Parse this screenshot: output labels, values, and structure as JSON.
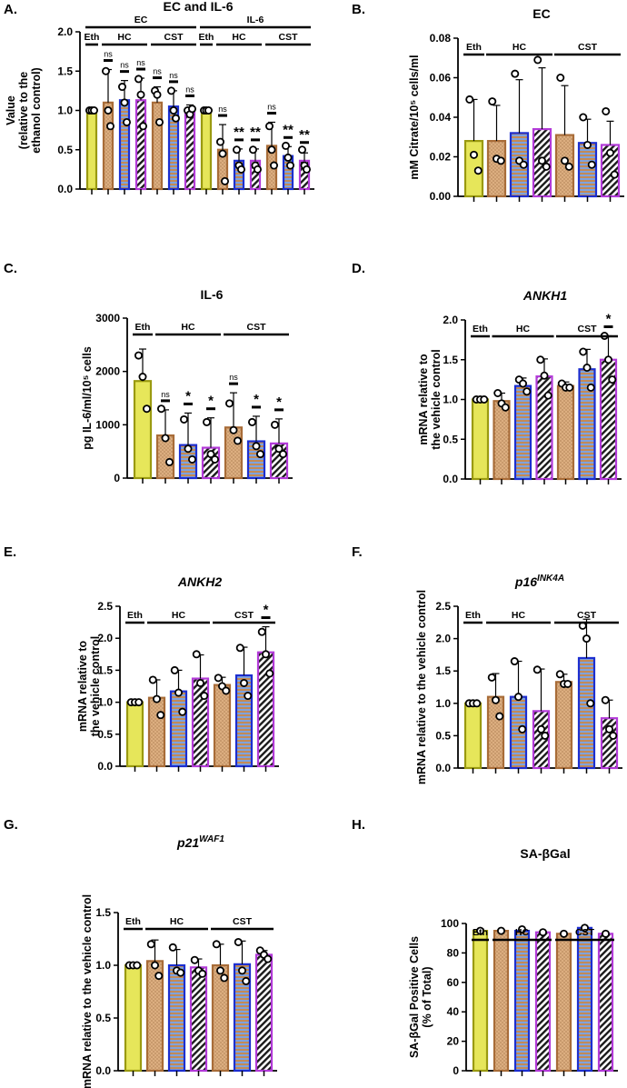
{
  "figure": {
    "legend_note": "Bar styles: Eth = yellow solid; HC/CST conditions = tan dotted, blue/tan striped, purple/black hatched"
  },
  "colors": {
    "eth": "#e6e65a",
    "eth_edge": "#9a9a10",
    "dot": "#dcae80",
    "dot_edge": "#a86c38",
    "blue_edge": "#1c2ed0",
    "purple_edge": "#b23ad8"
  },
  "chart_data": [
    {
      "id": "A",
      "letter": "A.",
      "type": "bar",
      "title": "EC and IL-6",
      "ylabel": "Value",
      "ylabel2": "(relative to the",
      "ylabel3": "ethanol control)",
      "ylim": [
        0,
        2.0
      ],
      "yticks": [
        "0.0",
        "0.5",
        "1.0",
        "1.5",
        "2.0"
      ],
      "categories": [
        "Eth",
        "HC-1",
        "HC-2",
        "HC-3",
        "CST-1",
        "CST-2",
        "CST-3",
        "Eth",
        "HC-1",
        "HC-2",
        "HC-3",
        "CST-1",
        "CST-2",
        "CST-3"
      ],
      "styles": [
        "eth",
        "dot",
        "blue",
        "purple",
        "dot",
        "blue",
        "purple",
        "eth",
        "dot",
        "blue",
        "purple",
        "dot",
        "blue",
        "purple"
      ],
      "values": [
        1.0,
        1.1,
        1.13,
        1.13,
        1.1,
        1.05,
        0.99,
        1.0,
        0.5,
        0.36,
        0.36,
        0.55,
        0.42,
        0.36
      ],
      "errors": [
        0.02,
        0.42,
        0.25,
        0.28,
        0.2,
        0.2,
        0.08,
        0.02,
        0.32,
        0.15,
        0.15,
        0.3,
        0.12,
        0.1
      ],
      "points": [
        [
          1,
          1,
          1
        ],
        [
          1.5,
          1.0,
          0.8
        ],
        [
          1.3,
          1.1,
          0.85
        ],
        [
          1.4,
          1.2,
          0.8
        ],
        [
          1.25,
          1.2,
          0.85
        ],
        [
          1.25,
          1.0,
          0.9
        ],
        [
          1.0,
          0.95,
          1.02
        ],
        [
          1,
          1,
          1
        ],
        [
          0.6,
          0.45,
          0.1
        ],
        [
          0.5,
          0.3,
          0.25
        ],
        [
          0.5,
          0.3,
          0.25
        ],
        [
          0.8,
          0.5,
          0.3
        ],
        [
          0.55,
          0.4,
          0.3
        ],
        [
          0.5,
          0.3,
          0.25
        ]
      ],
      "significance": [
        "",
        "ns",
        "ns",
        "ns",
        "ns",
        "ns",
        "ns",
        "",
        "ns",
        "**",
        "**",
        "ns",
        "**",
        "**"
      ],
      "group_labels": [
        {
          "text": "EC",
          "from": 0,
          "to": 6,
          "level": "outer"
        },
        {
          "text": "IL-6",
          "from": 7,
          "to": 13,
          "level": "outer"
        },
        {
          "text": "Eth",
          "from": 0,
          "to": 0,
          "level": "inner"
        },
        {
          "text": "HC",
          "from": 1,
          "to": 3,
          "level": "inner"
        },
        {
          "text": "CST",
          "from": 4,
          "to": 6,
          "level": "inner"
        },
        {
          "text": "Eth",
          "from": 7,
          "to": 7,
          "level": "inner"
        },
        {
          "text": "HC",
          "from": 8,
          "to": 10,
          "level": "inner"
        },
        {
          "text": "CST",
          "from": 11,
          "to": 13,
          "level": "inner"
        }
      ]
    },
    {
      "id": "B",
      "letter": "B.",
      "type": "bar",
      "title": "EC",
      "ylabel": "mM Citrate/10⁵ cells/ml",
      "ylim": [
        0,
        0.08
      ],
      "yticks": [
        "0.00",
        "0.02",
        "0.04",
        "0.06",
        "0.08"
      ],
      "categories": [
        "Eth",
        "HC-1",
        "HC-2",
        "HC-3",
        "CST-1",
        "CST-2",
        "CST-3"
      ],
      "styles": [
        "eth",
        "dot",
        "blue",
        "purple",
        "dot",
        "blue",
        "purple"
      ],
      "values": [
        0.028,
        0.028,
        0.032,
        0.034,
        0.031,
        0.027,
        0.026
      ],
      "errors": [
        0.021,
        0.018,
        0.027,
        0.031,
        0.025,
        0.012,
        0.012
      ],
      "points": [
        [
          0.049,
          0.021,
          0.013
        ],
        [
          0.048,
          0.019,
          0.018
        ],
        [
          0.062,
          0.018,
          0.016
        ],
        [
          0.069,
          0.018,
          0.015
        ],
        [
          0.06,
          0.018,
          0.015
        ],
        [
          0.04,
          0.026,
          0.016
        ],
        [
          0.043,
          0.022,
          0.011
        ]
      ],
      "significance": [
        "",
        "",
        "",
        "",
        "",
        "",
        ""
      ],
      "group_labels": [
        {
          "text": "Eth",
          "from": 0,
          "to": 0,
          "level": "inner"
        },
        {
          "text": "HC",
          "from": 1,
          "to": 3,
          "level": "inner"
        },
        {
          "text": "CST",
          "from": 4,
          "to": 6,
          "level": "inner"
        }
      ]
    },
    {
      "id": "C",
      "letter": "C.",
      "type": "bar",
      "title": "IL-6",
      "ylabel": "pg IL-6/ml/10⁵ cells",
      "ylim": [
        0,
        3000
      ],
      "yticks": [
        "0",
        "1000",
        "2000",
        "3000"
      ],
      "categories": [
        "Eth",
        "HC-1",
        "HC-2",
        "HC-3",
        "CST-1",
        "CST-2",
        "CST-3"
      ],
      "styles": [
        "eth",
        "dot",
        "blue",
        "purple",
        "dot",
        "blue",
        "purple"
      ],
      "values": [
        1820,
        800,
        620,
        570,
        950,
        690,
        650
      ],
      "errors": [
        600,
        480,
        600,
        560,
        650,
        470,
        460
      ],
      "points": [
        [
          2300,
          1900,
          1300
        ],
        [
          1300,
          750,
          300
        ],
        [
          1100,
          550,
          350
        ],
        [
          1050,
          450,
          350
        ],
        [
          1400,
          900,
          700
        ],
        [
          1050,
          600,
          450
        ],
        [
          1000,
          550,
          450
        ]
      ],
      "significance": [
        "",
        "ns",
        "*",
        "*",
        "ns",
        "*",
        "*"
      ],
      "group_labels": [
        {
          "text": "Eth",
          "from": 0,
          "to": 0,
          "level": "inner"
        },
        {
          "text": "HC",
          "from": 1,
          "to": 3,
          "level": "inner"
        },
        {
          "text": "CST",
          "from": 4,
          "to": 6,
          "level": "inner"
        }
      ]
    },
    {
      "id": "D",
      "letter": "D.",
      "type": "bar",
      "title": "ANKH1",
      "title_italic": true,
      "ylabel": "mRNA relative to",
      "ylabel2": "the vehicle control",
      "ylim": [
        0,
        2.0
      ],
      "yticks": [
        "0.0",
        "0.5",
        "1.0",
        "1.5",
        "2.0"
      ],
      "categories": [
        "Eth",
        "HC-1",
        "HC-2",
        "HC-3",
        "CST-1",
        "CST-2",
        "CST-3"
      ],
      "styles": [
        "eth",
        "dot",
        "blue",
        "purple",
        "dot",
        "blue",
        "purple"
      ],
      "values": [
        1.0,
        0.98,
        1.17,
        1.29,
        1.17,
        1.38,
        1.5
      ],
      "errors": [
        0.02,
        0.1,
        0.1,
        0.22,
        0.05,
        0.25,
        0.3
      ],
      "points": [
        [
          1,
          1,
          1
        ],
        [
          1.08,
          0.95,
          0.9
        ],
        [
          1.25,
          1.2,
          1.1
        ],
        [
          1.5,
          1.3,
          1.05
        ],
        [
          1.2,
          1.15,
          1.15
        ],
        [
          1.6,
          1.4,
          1.15
        ],
        [
          1.8,
          1.5,
          1.25
        ]
      ],
      "significance": [
        "",
        "",
        "",
        "",
        "",
        "",
        "*"
      ],
      "group_labels": [
        {
          "text": "Eth",
          "from": 0,
          "to": 0,
          "level": "inner"
        },
        {
          "text": "HC",
          "from": 1,
          "to": 3,
          "level": "inner"
        },
        {
          "text": "CST",
          "from": 4,
          "to": 6,
          "level": "inner"
        }
      ]
    },
    {
      "id": "E",
      "letter": "E.",
      "type": "bar",
      "title": "ANKH2",
      "title_italic": true,
      "ylabel": "mRNA relative to",
      "ylabel2": "the vehicle control",
      "ylim": [
        0,
        2.5
      ],
      "yticks": [
        "0.0",
        "0.5",
        "1.0",
        "1.5",
        "2.0",
        "2.5"
      ],
      "categories": [
        "Eth",
        "HC-1",
        "HC-2",
        "HC-3",
        "CST-1",
        "CST-2",
        "CST-3"
      ],
      "styles": [
        "eth",
        "dot",
        "blue",
        "purple",
        "dot",
        "blue",
        "purple"
      ],
      "values": [
        1.0,
        1.07,
        1.17,
        1.37,
        1.27,
        1.42,
        1.78
      ],
      "errors": [
        0.02,
        0.28,
        0.33,
        0.37,
        0.12,
        0.44,
        0.4
      ],
      "points": [
        [
          1,
          1,
          1
        ],
        [
          1.35,
          1.05,
          0.8
        ],
        [
          1.5,
          1.15,
          0.85
        ],
        [
          1.75,
          1.3,
          1.1
        ],
        [
          1.38,
          1.25,
          1.18
        ],
        [
          1.85,
          1.3,
          1.1
        ],
        [
          2.1,
          1.75,
          1.45
        ]
      ],
      "significance": [
        "",
        "",
        "",
        "",
        "",
        "",
        "*"
      ],
      "group_labels": [
        {
          "text": "Eth",
          "from": 0,
          "to": 0,
          "level": "inner"
        },
        {
          "text": "HC",
          "from": 1,
          "to": 3,
          "level": "inner"
        },
        {
          "text": "CST",
          "from": 4,
          "to": 6,
          "level": "inner"
        }
      ]
    },
    {
      "id": "F",
      "letter": "F.",
      "type": "bar",
      "title": "p16",
      "title_sup": "INK4A",
      "title_italic": true,
      "ylabel": "mRNA relative to the vehicle control",
      "ylim": [
        0,
        2.5
      ],
      "yticks": [
        "0.0",
        "0.5",
        "1.0",
        "1.5",
        "2.0",
        "2.5"
      ],
      "categories": [
        "Eth",
        "HC-1",
        "HC-2",
        "HC-3",
        "CST-1",
        "CST-2",
        "CST-3"
      ],
      "styles": [
        "eth",
        "dot",
        "blue",
        "purple",
        "dot",
        "blue",
        "purple"
      ],
      "values": [
        1.0,
        1.1,
        1.1,
        0.88,
        1.33,
        1.7,
        0.77
      ],
      "errors": [
        0.02,
        0.36,
        0.55,
        0.65,
        0.12,
        0.6,
        0.28
      ],
      "points": [
        [
          1,
          1,
          1
        ],
        [
          1.4,
          1.05,
          0.8
        ],
        [
          1.65,
          1.1,
          0.6
        ],
        [
          1.52,
          0.6,
          0.5
        ],
        [
          1.45,
          1.3,
          1.3
        ],
        [
          2.2,
          2.0,
          1.0
        ],
        [
          1.05,
          0.6,
          0.5
        ]
      ],
      "significance": [
        "",
        "",
        "",
        "",
        "",
        "",
        ""
      ],
      "group_labels": [
        {
          "text": "Eth",
          "from": 0,
          "to": 0,
          "level": "inner"
        },
        {
          "text": "HC",
          "from": 1,
          "to": 3,
          "level": "inner"
        },
        {
          "text": "CST",
          "from": 4,
          "to": 6,
          "level": "inner"
        }
      ]
    },
    {
      "id": "G",
      "letter": "G.",
      "type": "bar",
      "title": "p21",
      "title_sup": "WAF1",
      "title_italic": true,
      "ylabel": "mRNA relative to the vehicle control",
      "ylim": [
        0,
        1.5
      ],
      "yticks": [
        "0.0",
        "0.5",
        "1.0",
        "1.5"
      ],
      "categories": [
        "Eth",
        "HC-1",
        "HC-2",
        "HC-3",
        "CST-1",
        "CST-2",
        "CST-3"
      ],
      "styles": [
        "eth",
        "dot",
        "blue",
        "purple",
        "dot",
        "blue",
        "purple"
      ],
      "values": [
        1.0,
        1.04,
        1.0,
        0.98,
        1.0,
        1.01,
        1.1
      ],
      "errors": [
        0.01,
        0.2,
        0.15,
        0.08,
        0.2,
        0.22,
        0.04
      ],
      "points": [
        [
          1,
          1,
          1
        ],
        [
          1.2,
          1.0,
          0.9
        ],
        [
          1.17,
          0.95,
          0.93
        ],
        [
          1.05,
          0.95,
          0.92
        ],
        [
          1.2,
          0.95,
          0.88
        ],
        [
          1.22,
          0.95,
          0.85
        ],
        [
          1.14,
          1.1,
          1.06
        ]
      ],
      "significance": [
        "",
        "",
        "",
        "",
        "",
        "",
        ""
      ],
      "group_labels": [
        {
          "text": "Eth",
          "from": 0,
          "to": 0,
          "level": "inner"
        },
        {
          "text": "HC",
          "from": 1,
          "to": 3,
          "level": "inner"
        },
        {
          "text": "CST",
          "from": 4,
          "to": 6,
          "level": "inner"
        }
      ]
    },
    {
      "id": "H",
      "letter": "H.",
      "type": "bar",
      "title": "SA-βGal",
      "ylabel": "SA-βGal Positive Cells",
      "ylabel2": "(% of Total)",
      "ylim": [
        0,
        100
      ],
      "yticks": [
        "0",
        "20",
        "40",
        "60",
        "80",
        "100"
      ],
      "categories": [
        "Eth",
        "HC-1",
        "HC-2",
        "HC-3",
        "CST-1",
        "CST-2",
        "CST-3"
      ],
      "styles": [
        "eth",
        "dot",
        "blue",
        "purple",
        "dot",
        "blue",
        "purple"
      ],
      "values": [
        95,
        95,
        95,
        94,
        93,
        97,
        93
      ],
      "errors": [
        0,
        0,
        0,
        0,
        0,
        0,
        0
      ],
      "points": [
        [
          95
        ],
        [
          95
        ],
        [
          96
        ],
        [
          94
        ],
        [
          93
        ],
        [
          97
        ],
        [
          93
        ]
      ],
      "significance": [
        "",
        "",
        "",
        "",
        "",
        "",
        ""
      ],
      "group_labels": [
        {
          "text": "Eth",
          "from": 0,
          "to": 0,
          "level": "inner"
        },
        {
          "text": "HC",
          "from": 1,
          "to": 3,
          "level": "inner"
        },
        {
          "text": "CST",
          "from": 4,
          "to": 6,
          "level": "inner"
        }
      ]
    }
  ]
}
